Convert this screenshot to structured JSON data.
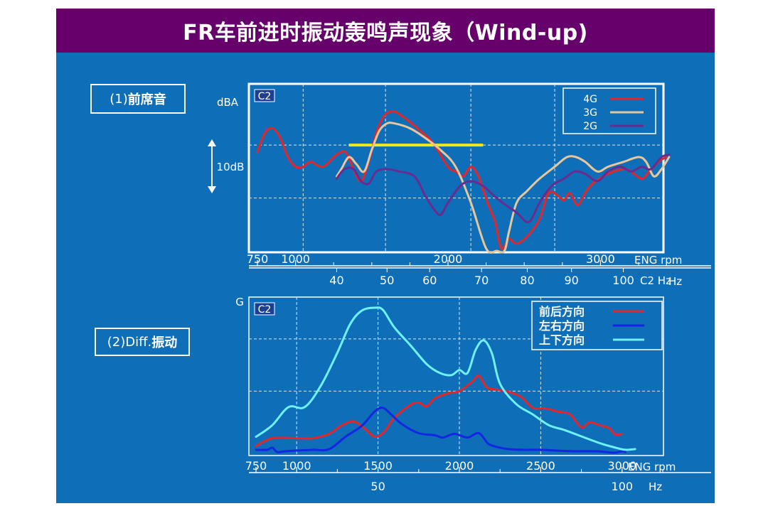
{
  "title": "FR车前进时振动轰鸣声现象（Wind-up)",
  "section1": {
    "label_prefix": "(1)",
    "label_main": "前席音"
  },
  "section2": {
    "label_prefix": "(2)Diff.",
    "label_main": "振动"
  },
  "colors": {
    "background": "#0f6eb8",
    "title_bar": "#66006a",
    "red": "#e3262a",
    "tan": "#e8c79a",
    "purple": "#6a2b8f",
    "blue": "#1326e3",
    "cyan": "#6ff2f7",
    "highlight": "#f0ea18",
    "white": "#ffffff"
  },
  "chart_data": [
    {
      "type": "line",
      "title": "",
      "badge": "C2",
      "ylabel": "dBA",
      "scale_label": "10dB",
      "scale_span_db": 10,
      "xlim_rpm": [
        750,
        3250
      ],
      "ylim": [
        0,
        30
      ],
      "xlabel_rpm": "ENG rpm",
      "xlabel_hz": "C2 Hz",
      "hz_unit": "Hz",
      "rpm_ticks": [
        {
          "value": 750,
          "label": "750"
        },
        {
          "value": 1000,
          "label": "1000"
        },
        {
          "value": 2000,
          "label": "2000"
        },
        {
          "value": 3000,
          "label": "3000"
        }
      ],
      "hz_ticks": [
        {
          "value": 40,
          "label": "40"
        },
        {
          "value": 50,
          "label": "50"
        },
        {
          "value": 60,
          "label": "60"
        },
        {
          "value": 70,
          "label": "70"
        },
        {
          "value": 80,
          "label": "80"
        },
        {
          "value": 90,
          "label": "90"
        },
        {
          "value": 100,
          "label": "100"
        }
      ],
      "hz_rpm_map": [
        [
          40,
          1270
        ],
        [
          50,
          1600
        ],
        [
          60,
          1880
        ],
        [
          70,
          2220
        ],
        [
          80,
          2520
        ],
        [
          90,
          2810
        ],
        [
          100,
          3150
        ]
      ],
      "grid_rpm": [
        1050,
        1590,
        2150,
        2700
      ],
      "grid_y": [
        22.0,
        11.0
      ],
      "highlight": {
        "x": [
          1350,
          2230
        ],
        "y": 22.0
      },
      "legend_position": "top-right",
      "series": [
        {
          "name": "4G",
          "color_key": "red",
          "points": [
            [
              750,
              20.5
            ],
            [
              800,
              24.5
            ],
            [
              850,
              25.5
            ],
            [
              900,
              23.5
            ],
            [
              950,
              19.5
            ],
            [
              1000,
              17.5
            ],
            [
              1050,
              17.5
            ],
            [
              1100,
              18.5
            ],
            [
              1180,
              17.5
            ],
            [
              1270,
              20.0
            ],
            [
              1330,
              20.5
            ],
            [
              1380,
              17.0
            ],
            [
              1430,
              14.5
            ],
            [
              1480,
              18.5
            ],
            [
              1530,
              24.5
            ],
            [
              1580,
              28.0
            ],
            [
              1640,
              29.0
            ],
            [
              1700,
              28.0
            ],
            [
              1800,
              25.5
            ],
            [
              1900,
              22.5
            ],
            [
              2000,
              17.5
            ],
            [
              2050,
              16.5
            ],
            [
              2100,
              15.5
            ],
            [
              2150,
              17.5
            ],
            [
              2200,
              15.5
            ],
            [
              2260,
              10.0
            ],
            [
              2310,
              6.0
            ],
            [
              2350,
              0.5
            ],
            [
              2400,
              2.5
            ],
            [
              2450,
              1.5
            ],
            [
              2520,
              3.0
            ],
            [
              2600,
              6.5
            ],
            [
              2660,
              12.0
            ],
            [
              2720,
              11.5
            ],
            [
              2760,
              10.5
            ],
            [
              2800,
              12.0
            ],
            [
              2850,
              9.5
            ],
            [
              2900,
              12.0
            ],
            [
              2950,
              14.0
            ],
            [
              3050,
              16.0
            ],
            [
              3150,
              17.0
            ],
            [
              3200,
              16.5
            ],
            [
              3270,
              15.0
            ],
            [
              3320,
              16.5
            ],
            [
              3380,
              18.5
            ],
            [
              3430,
              19.5
            ]
          ]
        },
        {
          "name": "3G",
          "color_key": "tan",
          "points": [
            [
              1270,
              15.5
            ],
            [
              1300,
              17.0
            ],
            [
              1350,
              19.5
            ],
            [
              1400,
              18.0
            ],
            [
              1450,
              16.5
            ],
            [
              1500,
              21.0
            ],
            [
              1550,
              25.0
            ],
            [
              1600,
              26.5
            ],
            [
              1650,
              26.5
            ],
            [
              1750,
              25.5
            ],
            [
              1850,
              23.5
            ],
            [
              1950,
              21.0
            ],
            [
              2050,
              17.5
            ],
            [
              2150,
              10.0
            ],
            [
              2250,
              0.5
            ],
            [
              2320,
              -5.0
            ],
            [
              2370,
              -1.5
            ],
            [
              2400,
              4.0
            ],
            [
              2450,
              10.0
            ],
            [
              2520,
              12.5
            ],
            [
              2600,
              15.0
            ],
            [
              2700,
              17.5
            ],
            [
              2780,
              19.5
            ],
            [
              2840,
              19.5
            ],
            [
              2900,
              18.5
            ],
            [
              2980,
              16.5
            ],
            [
              3050,
              17.5
            ],
            [
              3150,
              18.5
            ],
            [
              3250,
              19.5
            ],
            [
              3300,
              18.5
            ],
            [
              3350,
              15.5
            ],
            [
              3400,
              17.0
            ],
            [
              3450,
              19.5
            ]
          ]
        },
        {
          "name": "2G",
          "color_key": "purple",
          "points": [
            [
              1270,
              15.0
            ],
            [
              1320,
              17.0
            ],
            [
              1380,
              17.0
            ],
            [
              1430,
              14.5
            ],
            [
              1480,
              14.0
            ],
            [
              1530,
              16.5
            ],
            [
              1600,
              17.0
            ],
            [
              1680,
              16.5
            ],
            [
              1780,
              15.5
            ],
            [
              1850,
              11.5
            ],
            [
              1900,
              9.0
            ],
            [
              1950,
              7.5
            ],
            [
              2000,
              10.0
            ],
            [
              2080,
              13.5
            ],
            [
              2150,
              14.5
            ],
            [
              2230,
              13.5
            ],
            [
              2300,
              11.5
            ],
            [
              2380,
              9.5
            ],
            [
              2450,
              8.0
            ],
            [
              2530,
              6.0
            ],
            [
              2600,
              10.0
            ],
            [
              2680,
              13.5
            ],
            [
              2760,
              15.0
            ],
            [
              2830,
              16.5
            ],
            [
              2900,
              16.0
            ],
            [
              2980,
              14.5
            ],
            [
              3050,
              16.5
            ],
            [
              3130,
              17.5
            ],
            [
              3200,
              16.5
            ],
            [
              3270,
              17.5
            ],
            [
              3330,
              17.0
            ],
            [
              3400,
              19.5
            ],
            [
              3450,
              20.0
            ]
          ]
        }
      ]
    },
    {
      "type": "line",
      "title": "",
      "badge": "C2",
      "ylabel": "G",
      "xlim_rpm": [
        750,
        3250
      ],
      "ylim": [
        0,
        100
      ],
      "xlabel_rpm": "ENG rpm",
      "hz_unit": "Hz",
      "rpm_ticks": [
        {
          "value": 750,
          "label": "750"
        },
        {
          "value": 1000,
          "label": "1000"
        },
        {
          "value": 1500,
          "label": "1500"
        },
        {
          "value": 2000,
          "label": "2000"
        },
        {
          "value": 2500,
          "label": "2500"
        },
        {
          "value": 3000,
          "label": "3000"
        }
      ],
      "hz_ticks": [
        {
          "value": 50,
          "label": "50"
        },
        {
          "value": 100,
          "label": "100"
        }
      ],
      "hz_rpm_map": [
        [
          50,
          1500
        ],
        [
          100,
          3000
        ]
      ],
      "grid_rpm": [
        1000,
        1500,
        2000,
        2500
      ],
      "grid_y": [
        78.0,
        42.0
      ],
      "legend_position": "top-right",
      "series": [
        {
          "name": "前后方向",
          "color_key": "red",
          "points": [
            [
              750,
              4.0
            ],
            [
              850,
              9.5
            ],
            [
              1000,
              9.5
            ],
            [
              1100,
              9.5
            ],
            [
              1200,
              12.5
            ],
            [
              1280,
              18.5
            ],
            [
              1350,
              21.0
            ],
            [
              1420,
              16.0
            ],
            [
              1480,
              10.5
            ],
            [
              1540,
              14.0
            ],
            [
              1600,
              23.5
            ],
            [
              1700,
              32.5
            ],
            [
              1750,
              34.0
            ],
            [
              1800,
              31.5
            ],
            [
              1850,
              37.0
            ],
            [
              1930,
              40.5
            ],
            [
              2000,
              42.0
            ],
            [
              2080,
              48.5
            ],
            [
              2120,
              52.5
            ],
            [
              2170,
              44.5
            ],
            [
              2230,
              43.0
            ],
            [
              2300,
              41.5
            ],
            [
              2380,
              38.0
            ],
            [
              2450,
              30.5
            ],
            [
              2530,
              30.0
            ],
            [
              2600,
              28.0
            ],
            [
              2680,
              26.0
            ],
            [
              2750,
              17.0
            ],
            [
              2800,
              20.5
            ],
            [
              2860,
              18.5
            ],
            [
              2920,
              16.5
            ],
            [
              2960,
              12.0
            ],
            [
              3000,
              12.5
            ]
          ]
        },
        {
          "name": "左右方向",
          "color_key": "blue",
          "points": [
            [
              750,
              1.5
            ],
            [
              820,
              1.5
            ],
            [
              850,
              3.0
            ],
            [
              880,
              0.0
            ],
            [
              930,
              0.5
            ],
            [
              1000,
              1.0
            ],
            [
              1100,
              1.5
            ],
            [
              1200,
              2.0
            ],
            [
              1300,
              10.5
            ],
            [
              1400,
              18.0
            ],
            [
              1480,
              28.0
            ],
            [
              1530,
              30.5
            ],
            [
              1580,
              26.0
            ],
            [
              1650,
              19.0
            ],
            [
              1750,
              13.0
            ],
            [
              1850,
              11.5
            ],
            [
              1900,
              10.0
            ],
            [
              1970,
              12.5
            ],
            [
              2050,
              10.0
            ],
            [
              2120,
              13.0
            ],
            [
              2180,
              5.5
            ],
            [
              2250,
              3.0
            ],
            [
              2300,
              2.0
            ],
            [
              2380,
              1.5
            ],
            [
              2500,
              1.5
            ],
            [
              2600,
              1.0
            ],
            [
              2700,
              0.5
            ],
            [
              2850,
              0.5
            ],
            [
              2950,
              -0.5
            ],
            [
              3000,
              0.5
            ],
            [
              3020,
              0.0
            ]
          ]
        },
        {
          "name": "上下方向",
          "color_key": "cyan",
          "points": [
            [
              750,
              10.5
            ],
            [
              850,
              18.5
            ],
            [
              950,
              31.0
            ],
            [
              1050,
              31.0
            ],
            [
              1150,
              46.0
            ],
            [
              1250,
              68.5
            ],
            [
              1330,
              88.5
            ],
            [
              1400,
              97.5
            ],
            [
              1480,
              99.5
            ],
            [
              1530,
              98.0
            ],
            [
              1600,
              86.0
            ],
            [
              1700,
              73.5
            ],
            [
              1800,
              60.5
            ],
            [
              1880,
              54.5
            ],
            [
              1950,
              53.0
            ],
            [
              2000,
              56.5
            ],
            [
              2050,
              54.5
            ],
            [
              2100,
              70.5
            ],
            [
              2150,
              77.0
            ],
            [
              2200,
              68.0
            ],
            [
              2250,
              47.0
            ],
            [
              2350,
              33.0
            ],
            [
              2450,
              26.0
            ],
            [
              2550,
              18.5
            ],
            [
              2650,
              15.0
            ],
            [
              2780,
              9.5
            ],
            [
              2880,
              5.5
            ],
            [
              2960,
              3.0
            ],
            [
              3020,
              1.5
            ],
            [
              3080,
              2.0
            ]
          ]
        }
      ]
    }
  ]
}
